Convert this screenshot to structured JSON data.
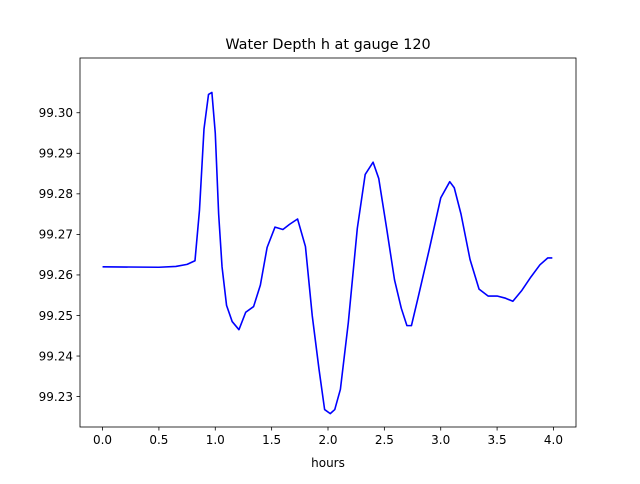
{
  "chart_data": {
    "type": "line",
    "title": "Water Depth h at gauge 120",
    "xlabel": "hours",
    "ylabel": "",
    "xlim": [
      -0.2,
      4.2
    ],
    "ylim": [
      99.2225,
      99.3135
    ],
    "xticks": [
      0.0,
      0.5,
      1.0,
      1.5,
      2.0,
      2.5,
      3.0,
      3.5,
      4.0
    ],
    "xtick_labels": [
      "0.0",
      "0.5",
      "1.0",
      "1.5",
      "2.0",
      "2.5",
      "3.0",
      "3.5",
      "4.0"
    ],
    "yticks": [
      99.23,
      99.24,
      99.25,
      99.26,
      99.27,
      99.28,
      99.29,
      99.3
    ],
    "ytick_labels": [
      "99.23",
      "99.24",
      "99.25",
      "99.26",
      "99.27",
      "99.28",
      "99.29",
      "99.30"
    ],
    "grid": false,
    "series": [
      {
        "color": "#0000ff",
        "x": [
          0.0,
          0.5,
          0.65,
          0.75,
          0.82,
          0.86,
          0.9,
          0.94,
          0.97,
          1.0,
          1.03,
          1.06,
          1.1,
          1.15,
          1.21,
          1.27,
          1.34,
          1.4,
          1.46,
          1.53,
          1.6,
          1.66,
          1.73,
          1.8,
          1.86,
          1.92,
          1.97,
          2.02,
          2.06,
          2.11,
          2.18,
          2.26,
          2.33,
          2.4,
          2.45,
          2.52,
          2.59,
          2.65,
          2.7,
          2.74,
          2.8,
          2.9,
          3.0,
          3.08,
          3.12,
          3.18,
          3.26,
          3.34,
          3.42,
          3.5,
          3.57,
          3.64,
          3.72,
          3.8,
          3.88,
          3.95,
          3.99
        ],
        "y": [
          99.262,
          99.2619,
          99.2621,
          99.2626,
          99.2635,
          99.276,
          99.296,
          99.3045,
          99.305,
          99.295,
          99.275,
          99.262,
          99.2525,
          99.2485,
          99.2465,
          99.2508,
          99.2522,
          99.2575,
          99.2668,
          99.2718,
          99.2712,
          99.2725,
          99.2738,
          99.267,
          99.25,
          99.2368,
          99.2268,
          99.2258,
          99.2268,
          99.2318,
          99.2482,
          99.2715,
          99.2848,
          99.2878,
          99.2838,
          99.2715,
          99.2588,
          99.2518,
          99.2475,
          99.2475,
          99.2545,
          99.2665,
          99.279,
          99.283,
          99.2815,
          99.275,
          99.2638,
          99.2565,
          99.2548,
          99.2548,
          99.2543,
          99.2535,
          99.2562,
          99.2595,
          99.2625,
          99.2642,
          99.2642
        ]
      }
    ]
  }
}
